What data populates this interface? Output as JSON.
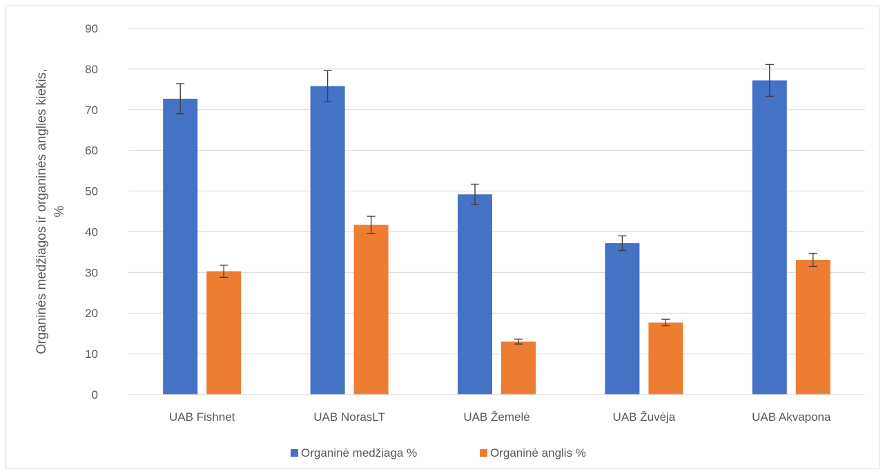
{
  "chart_data": {
    "type": "bar",
    "categories": [
      "UAB Fishnet",
      "UAB NorasLT",
      "UAB Žemelė",
      "UAB Žuvėja",
      "UAB Akvapona"
    ],
    "series": [
      {
        "name": "Organinė medžiaga %",
        "color": "#4472C4",
        "values": [
          72.7,
          75.8,
          49.2,
          37.2,
          77.2
        ],
        "errors": [
          3.7,
          3.8,
          2.5,
          1.8,
          3.9
        ]
      },
      {
        "name": "Organinė anglis %",
        "color": "#ED7D31",
        "values": [
          30.3,
          41.7,
          13.0,
          17.7,
          33.1
        ],
        "errors": [
          1.5,
          2.1,
          0.6,
          0.8,
          1.6
        ]
      }
    ],
    "ylabel_line1": "Organinės medžiagos ir organinės anglies kiekis,",
    "ylabel_line2": "%",
    "ylim": [
      0,
      90
    ],
    "yticks": [
      "0",
      "10",
      "20",
      "30",
      "40",
      "50",
      "60",
      "70",
      "80",
      "90"
    ],
    "grid": true,
    "legend_position": "bottom"
  }
}
